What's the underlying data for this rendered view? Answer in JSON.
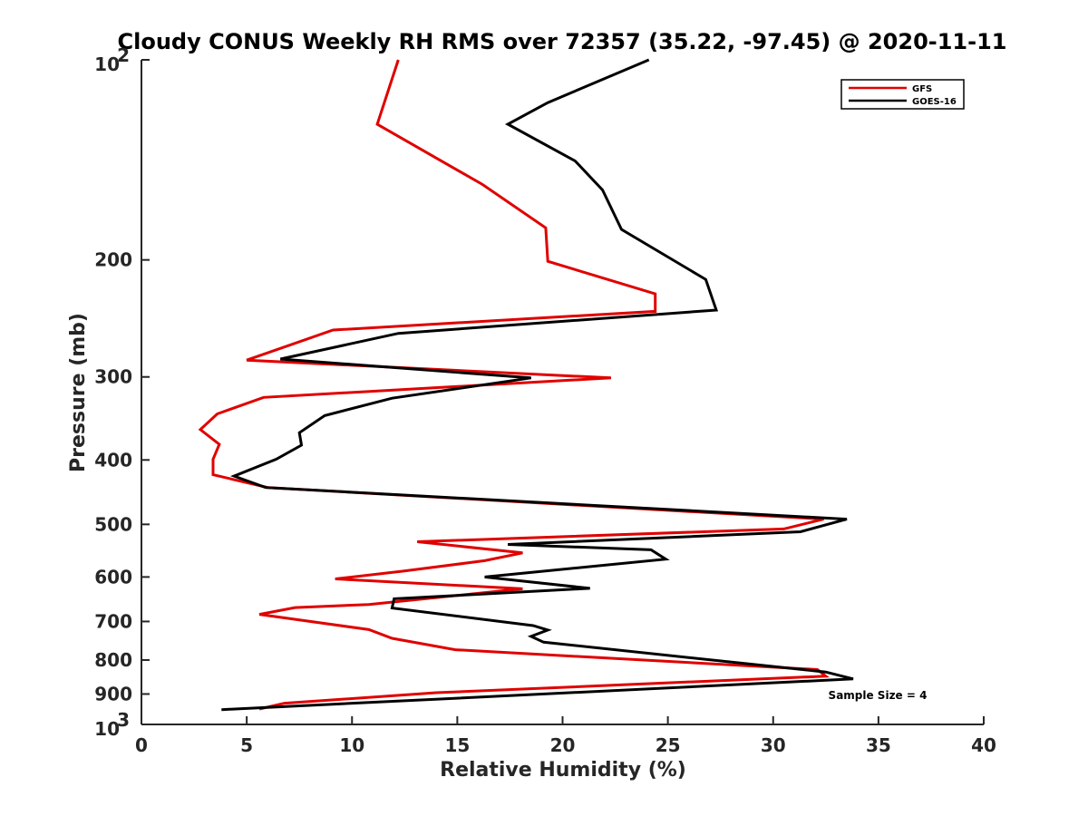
{
  "chart_data": {
    "type": "line",
    "title": "Cloudy CONUS Weekly RH RMS over 72357 (35.22, -97.45) @ 2020-11-11",
    "xlabel": "Relative Humidity (%)",
    "ylabel": "Pressure (mb)",
    "xlim": [
      0,
      40
    ],
    "ylim": [
      100,
      1000
    ],
    "y_scale": "log",
    "y_reversed": true,
    "x_ticks": [
      "0",
      "5",
      "10",
      "15",
      "20",
      "25",
      "30",
      "35",
      "40"
    ],
    "y_ticks": [
      {
        "value": 100,
        "base": "10",
        "exp": "2"
      },
      {
        "value": 200,
        "label": "200"
      },
      {
        "value": 300,
        "label": "300"
      },
      {
        "value": 400,
        "label": "400"
      },
      {
        "value": 500,
        "label": "500"
      },
      {
        "value": 600,
        "label": "600"
      },
      {
        "value": 700,
        "label": "700"
      },
      {
        "value": 800,
        "label": "800"
      },
      {
        "value": 900,
        "label": "900"
      },
      {
        "value": 1000,
        "base": "10",
        "exp": "3"
      }
    ],
    "legend_position": "top-right",
    "annotation": "Sample Size = 4",
    "grid": false,
    "series": [
      {
        "name": "GFS",
        "color": "#e00000",
        "points": [
          [
            12.2,
            100
          ],
          [
            11.2,
            125
          ],
          [
            16.2,
            154
          ],
          [
            19.2,
            179
          ],
          [
            19.3,
            201
          ],
          [
            24.4,
            225
          ],
          [
            24.4,
            239
          ],
          [
            9.1,
            255
          ],
          [
            5.0,
            283
          ],
          [
            22.3,
            301
          ],
          [
            5.8,
            322
          ],
          [
            3.6,
            341
          ],
          [
            2.8,
            360
          ],
          [
            3.7,
            379
          ],
          [
            3.4,
            399
          ],
          [
            3.4,
            421
          ],
          [
            6.0,
            440
          ],
          [
            32.4,
            491
          ],
          [
            30.5,
            508
          ],
          [
            13.1,
            531
          ],
          [
            18.1,
            552
          ],
          [
            16.3,
            567
          ],
          [
            12.4,
            588
          ],
          [
            9.2,
            604
          ],
          [
            18.1,
            625
          ],
          [
            10.8,
            660
          ],
          [
            7.3,
            667
          ],
          [
            5.6,
            683
          ],
          [
            10.8,
            720
          ],
          [
            11.9,
            742
          ],
          [
            14.9,
            772
          ],
          [
            32.1,
            827
          ],
          [
            32.5,
            846
          ],
          [
            14.0,
            896
          ],
          [
            6.8,
            929
          ],
          [
            5.6,
            948
          ]
        ]
      },
      {
        "name": "GOES-16",
        "color": "#000000",
        "points": [
          [
            24.1,
            100
          ],
          [
            19.3,
            116
          ],
          [
            17.4,
            125
          ],
          [
            20.6,
            142
          ],
          [
            21.9,
            157
          ],
          [
            22.8,
            180
          ],
          [
            26.8,
            214
          ],
          [
            27.3,
            238
          ],
          [
            12.2,
            258
          ],
          [
            6.6,
            282
          ],
          [
            18.5,
            301
          ],
          [
            11.9,
            323
          ],
          [
            8.7,
            343
          ],
          [
            7.5,
            364
          ],
          [
            7.6,
            380
          ],
          [
            6.4,
            399
          ],
          [
            4.4,
            423
          ],
          [
            5.9,
            440
          ],
          [
            33.5,
            491
          ],
          [
            31.3,
            513
          ],
          [
            17.4,
            536
          ],
          [
            24.2,
            546
          ],
          [
            24.9,
            564
          ],
          [
            16.3,
            600
          ],
          [
            21.3,
            624
          ],
          [
            12.0,
            647
          ],
          [
            11.9,
            668
          ],
          [
            18.6,
            710
          ],
          [
            19.3,
            721
          ],
          [
            18.5,
            737
          ],
          [
            19.1,
            752
          ],
          [
            32.5,
            834
          ],
          [
            33.8,
            854
          ],
          [
            3.8,
            950
          ]
        ]
      }
    ]
  }
}
